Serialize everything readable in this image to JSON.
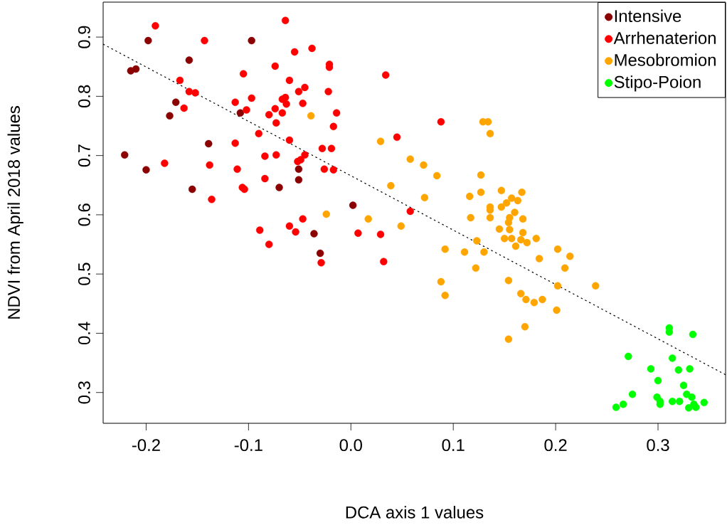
{
  "chart_data": {
    "type": "scatter",
    "xlabel": "DCA axis 1 values",
    "ylabel": "NDVI from April 2018 values",
    "xlim": [
      -0.242,
      0.366
    ],
    "ylim": [
      0.248,
      0.959
    ],
    "xticks": [
      -0.2,
      -0.1,
      {
        "value": 0,
        "label": "0.0"
      },
      0.1,
      0.2,
      0.3
    ],
    "yticks": [
      0.3,
      0.4,
      0.5,
      0.6,
      0.7,
      0.8,
      0.9
    ],
    "grid": false,
    "legend": "top right",
    "marker": "circle",
    "series": [
      {
        "name": "Intensive",
        "color": "#8b0000",
        "x": [
          -0.198,
          -0.158,
          -0.215,
          -0.21,
          -0.171,
          -0.177,
          -0.097,
          -0.108,
          -0.139,
          -0.221,
          -0.2,
          -0.155,
          -0.07,
          -0.051,
          -0.051,
          0.002,
          -0.036,
          -0.03
        ],
        "values": [
          0.894,
          0.861,
          0.843,
          0.846,
          0.79,
          0.767,
          0.894,
          0.772,
          0.72,
          0.701,
          0.676,
          0.643,
          0.646,
          0.677,
          0.659,
          0.616,
          0.568,
          0.535
        ]
      },
      {
        "name": "Arrhenaterion",
        "color": "#ff0000",
        "x": [
          -0.191,
          -0.143,
          -0.064,
          -0.055,
          -0.038,
          -0.074,
          -0.105,
          -0.167,
          -0.06,
          -0.045,
          -0.051,
          -0.158,
          -0.152,
          -0.097,
          -0.113,
          -0.067,
          -0.064,
          -0.063,
          -0.047,
          -0.163,
          -0.102,
          -0.074,
          -0.08,
          -0.067,
          -0.073,
          -0.09,
          -0.113,
          -0.06,
          -0.084,
          -0.073,
          -0.052,
          -0.049,
          -0.045,
          -0.182,
          -0.138,
          -0.111,
          -0.084,
          -0.106,
          -0.104,
          -0.136,
          -0.089,
          -0.06,
          -0.054,
          -0.047,
          -0.08,
          -0.021,
          -0.021,
          0.034,
          -0.022,
          -0.014,
          -0.017,
          0.088,
          0.045,
          -0.028,
          -0.019,
          -0.026,
          -0.017,
          0.007,
          0.029,
          -0.029,
          0.032,
          0.058
        ],
        "values": [
          0.919,
          0.894,
          0.928,
          0.875,
          0.881,
          0.851,
          0.838,
          0.827,
          0.827,
          0.815,
          0.808,
          0.808,
          0.806,
          0.797,
          0.79,
          0.795,
          0.798,
          0.787,
          0.788,
          0.78,
          0.777,
          0.779,
          0.769,
          0.772,
          0.755,
          0.737,
          0.721,
          0.726,
          0.699,
          0.701,
          0.69,
          0.693,
          0.701,
          0.687,
          0.684,
          0.677,
          0.661,
          0.646,
          0.643,
          0.626,
          0.574,
          0.581,
          0.571,
          0.593,
          0.55,
          0.854,
          0.849,
          0.836,
          0.808,
          0.772,
          0.749,
          0.757,
          0.731,
          0.712,
          0.712,
          0.677,
          0.676,
          0.569,
          0.567,
          0.519,
          0.521,
          0.606
        ]
      },
      {
        "name": "Mesobromion",
        "color": "#ffa500",
        "x": [
          -0.039,
          0.029,
          0.058,
          0.071,
          0.084,
          0.039,
          0.072,
          -0.024,
          0.017,
          0.049,
          0.092,
          0.088,
          0.129,
          0.134,
          0.136,
          0.127,
          0.127,
          0.116,
          0.147,
          0.167,
          0.157,
          0.163,
          0.152,
          0.136,
          0.136,
          0.147,
          0.16,
          0.117,
          0.136,
          0.155,
          0.154,
          0.168,
          0.145,
          0.155,
          0.168,
          0.15,
          0.157,
          0.166,
          0.172,
          0.181,
          0.161,
          0.123,
          0.111,
          0.13,
          0.202,
          0.214,
          0.184,
          0.122,
          0.209,
          0.154,
          0.202,
          0.239,
          0.092,
          0.166,
          0.171,
          0.179,
          0.187,
          0.201,
          0.17,
          0.154
        ],
        "values": [
          0.767,
          0.724,
          0.694,
          0.684,
          0.666,
          0.649,
          0.629,
          0.601,
          0.593,
          0.581,
          0.542,
          0.487,
          0.757,
          0.757,
          0.737,
          0.667,
          0.638,
          0.631,
          0.641,
          0.638,
          0.628,
          0.624,
          0.62,
          0.613,
          0.608,
          0.613,
          0.604,
          0.595,
          0.595,
          0.595,
          0.587,
          0.593,
          0.576,
          0.575,
          0.57,
          0.56,
          0.56,
          0.558,
          0.553,
          0.56,
          0.547,
          0.556,
          0.537,
          0.537,
          0.542,
          0.53,
          0.526,
          0.51,
          0.51,
          0.489,
          0.48,
          0.48,
          0.464,
          0.467,
          0.457,
          0.452,
          0.457,
          0.439,
          0.411,
          0.39
        ]
      },
      {
        "name": "Stipo-Poion",
        "color": "#00ff00",
        "x": [
          0.311,
          0.311,
          0.334,
          0.271,
          0.314,
          0.293,
          0.32,
          0.331,
          0.3,
          0.325,
          0.275,
          0.299,
          0.302,
          0.302,
          0.314,
          0.321,
          0.328,
          0.333,
          0.335,
          0.337,
          0.33,
          0.345,
          0.266,
          0.259
        ],
        "values": [
          0.409,
          0.402,
          0.398,
          0.361,
          0.358,
          0.34,
          0.338,
          0.34,
          0.32,
          0.312,
          0.297,
          0.292,
          0.285,
          0.28,
          0.285,
          0.285,
          0.297,
          0.292,
          0.28,
          0.275,
          0.274,
          0.283,
          0.28,
          0.275
        ]
      },
      {
        "type": "line",
        "color": "#000000",
        "line_style": "dotted",
        "marker": "none",
        "x": [
          -0.242,
          0.366
        ],
        "values": [
          0.888,
          0.33
        ]
      }
    ]
  }
}
